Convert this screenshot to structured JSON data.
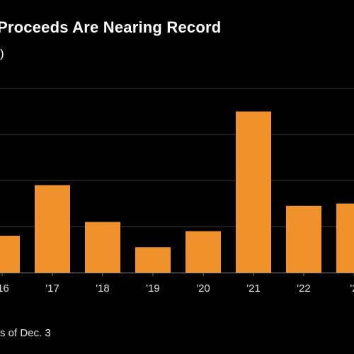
{
  "title": "Proceeds Are Nearing Record",
  "subtitle": ")",
  "footnote": "s of Dec. 3",
  "colors": {
    "bar": "#f0922c",
    "grid": "#3a3a3a",
    "background": "#000000"
  },
  "chart_data": {
    "type": "bar",
    "categories": [
      "'16",
      "'17",
      "'18",
      "'19",
      "'20",
      "'21",
      "'22",
      "'2"
    ],
    "values": [
      0.8,
      1.9,
      1.1,
      0.55,
      0.9,
      3.5,
      1.45,
      1.5
    ],
    "ylim": [
      0,
      4
    ],
    "grid": true,
    "title": "Proceeds Are Nearing Record",
    "xlabel": "",
    "ylabel": ""
  }
}
